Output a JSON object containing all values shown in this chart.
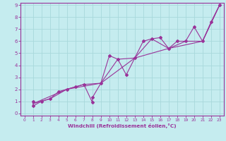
{
  "xlabel": "Windchill (Refroidissement éolien,°C)",
  "background_color": "#c5ecef",
  "grid_color": "#a8d8db",
  "line_color": "#993399",
  "spine_color": "#993399",
  "xlim": [
    -0.5,
    23.5
  ],
  "ylim": [
    -0.2,
    9.2
  ],
  "xticks": [
    0,
    1,
    2,
    3,
    4,
    5,
    6,
    7,
    8,
    9,
    10,
    11,
    12,
    13,
    14,
    15,
    16,
    17,
    18,
    19,
    20,
    21,
    22,
    23
  ],
  "yticks": [
    0,
    1,
    2,
    3,
    4,
    5,
    6,
    7,
    8,
    9
  ],
  "line1_x": [
    1,
    1,
    2,
    3,
    4,
    5,
    6,
    7,
    8,
    8,
    9,
    10,
    11,
    12,
    13,
    14,
    15,
    16,
    17,
    18,
    19,
    20,
    21,
    22,
    23
  ],
  "line1_y": [
    1.0,
    0.6,
    1.0,
    1.2,
    1.8,
    2.0,
    2.2,
    2.4,
    0.9,
    1.3,
    2.5,
    4.8,
    4.5,
    3.2,
    4.6,
    6.0,
    6.2,
    6.3,
    5.4,
    6.0,
    6.0,
    7.2,
    6.0,
    7.6,
    9.0
  ],
  "line2_x": [
    1,
    3,
    5,
    7,
    9,
    11,
    13,
    15,
    17,
    19,
    21,
    23
  ],
  "line2_y": [
    0.8,
    1.2,
    2.0,
    2.4,
    2.5,
    4.5,
    4.6,
    6.2,
    5.4,
    6.0,
    6.0,
    9.0
  ],
  "line3_x": [
    1,
    5,
    9,
    13,
    17,
    21,
    23
  ],
  "line3_y": [
    0.8,
    2.0,
    2.5,
    4.6,
    5.4,
    6.0,
    9.0
  ]
}
